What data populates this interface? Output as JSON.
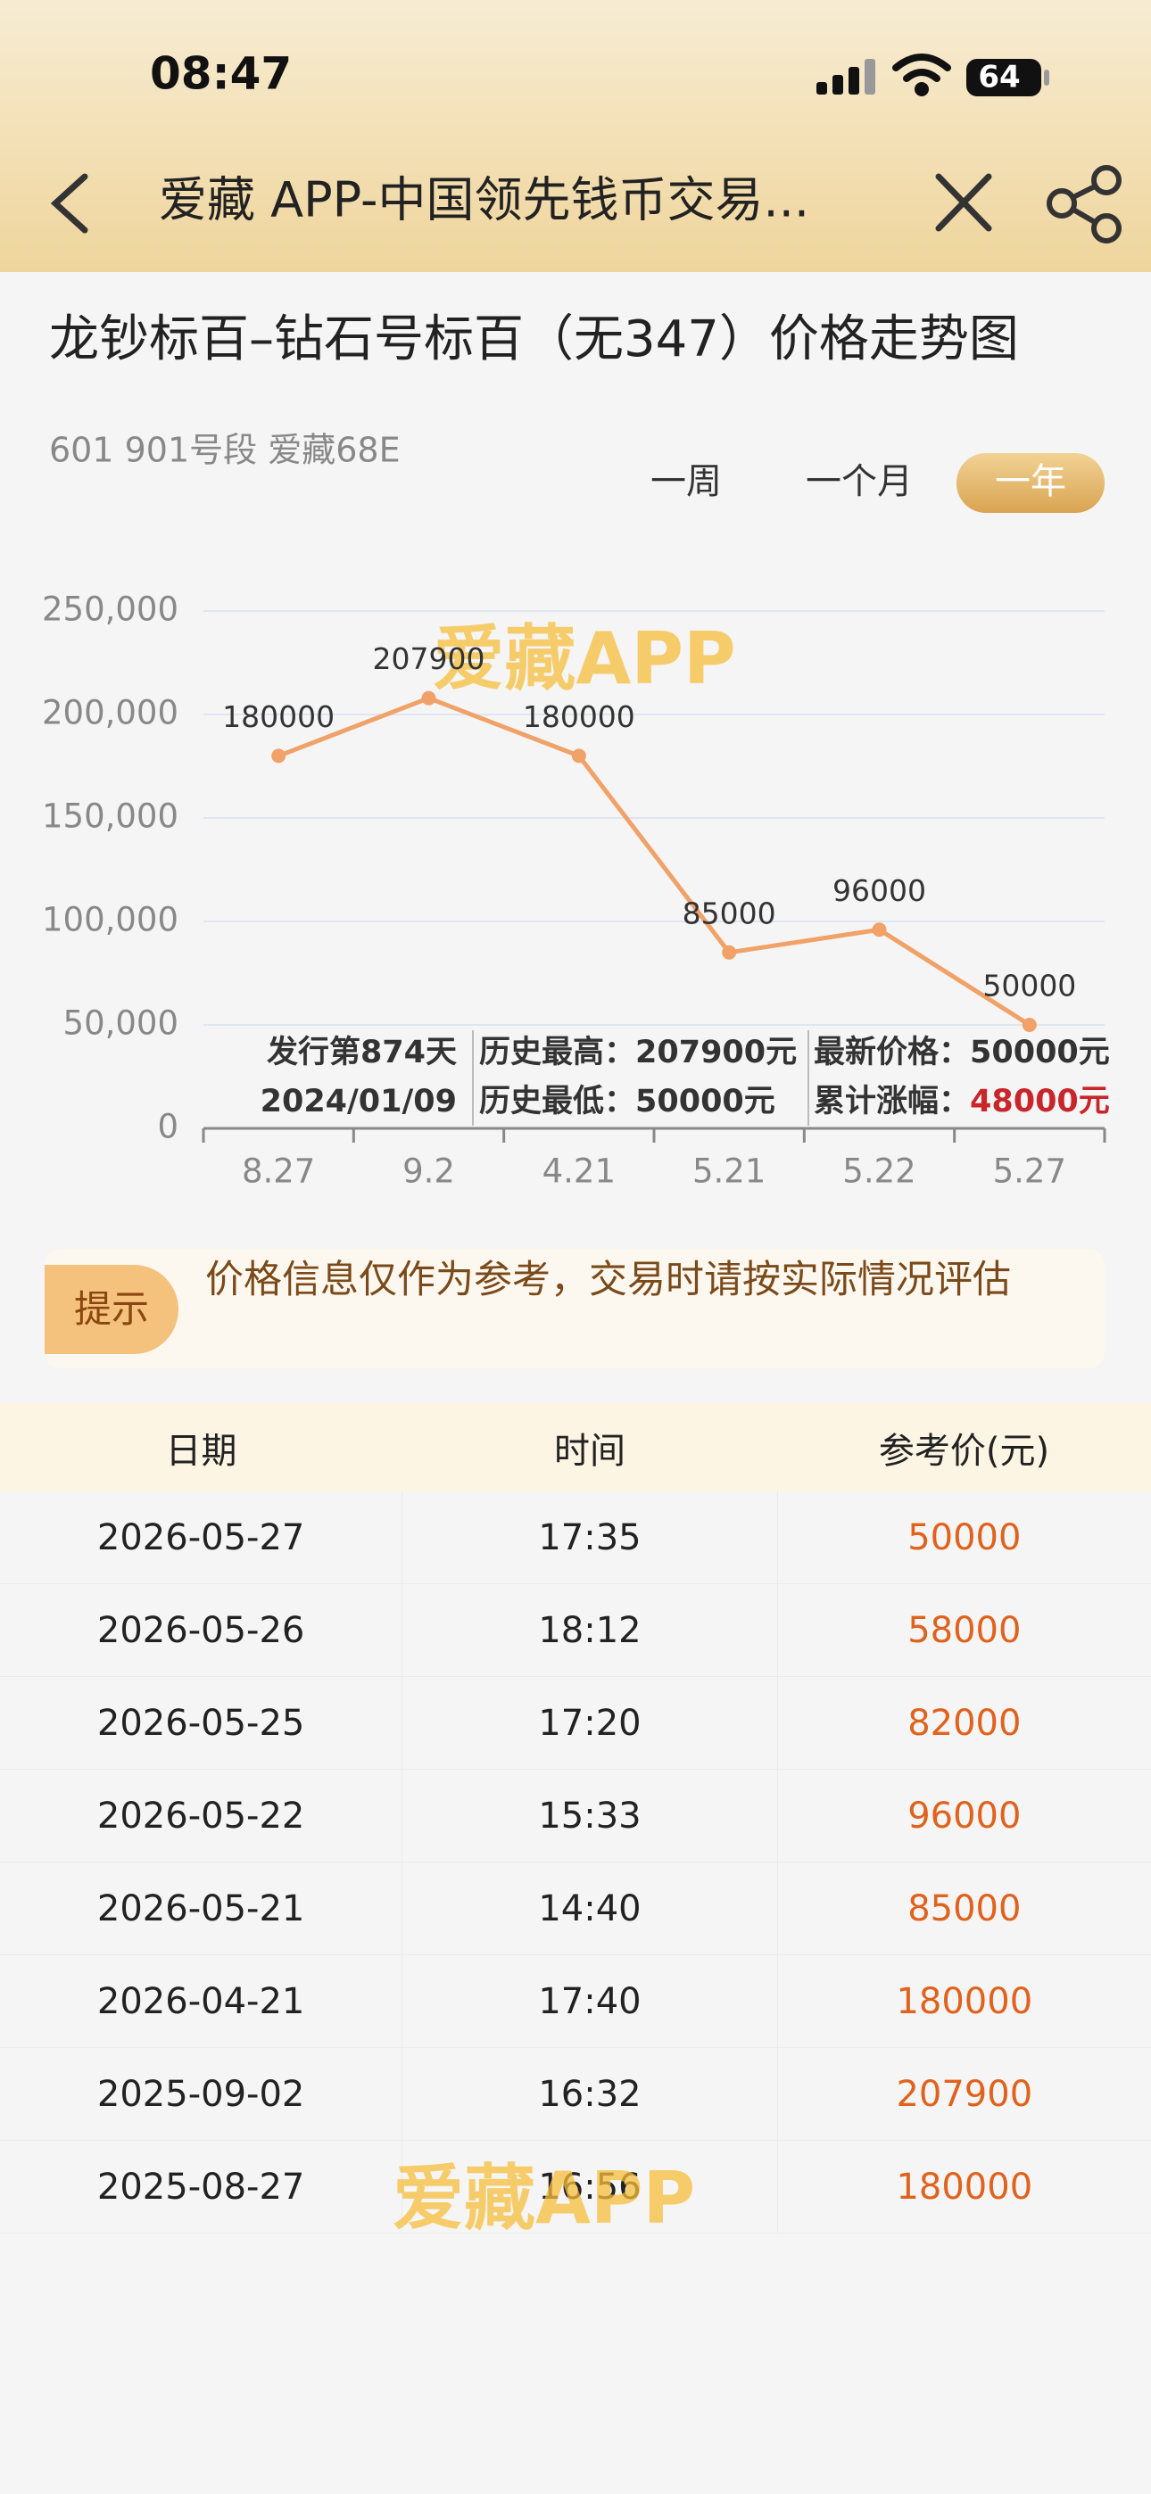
{
  "status": {
    "time": "08:47",
    "battery": "64"
  },
  "nav": {
    "title": "爱藏 APP-中国领先钱币交易..."
  },
  "chart_data": {
    "type": "line",
    "title": "龙钞标百–钻石号标百（无347）价格走势图",
    "subtitle": "601 901号段 爱藏68E",
    "categories": [
      "8.27",
      "9.2",
      "4.21",
      "5.21",
      "5.22",
      "5.27"
    ],
    "values": [
      180000,
      207900,
      180000,
      85000,
      96000,
      50000
    ],
    "color": "#f0a268",
    "ylim": [
      0,
      250000
    ],
    "yticks": [
      0,
      {
        "value": 50000,
        "label": "50,000"
      },
      {
        "value": 100000,
        "label": "100,000"
      },
      {
        "value": 150000,
        "label": "150,000"
      },
      {
        "value": 200000,
        "label": "200,000"
      },
      {
        "value": 250000,
        "label": "250,000"
      }
    ],
    "grid": true
  },
  "range_tabs": [
    "一周",
    "一个月",
    "一年"
  ],
  "active_tab": 2,
  "stats": {
    "issue": [
      "发行第874天",
      "2024/01/09"
    ],
    "history": [
      [
        "历史最高：",
        "207900元"
      ],
      [
        "历史最低：",
        "50000元"
      ]
    ],
    "latest": [
      [
        "最新价格：",
        "50000元"
      ],
      [
        "累计涨幅：",
        "48000元"
      ]
    ]
  },
  "watermark": "爱藏APP",
  "notice": {
    "tag": "提示",
    "text": "价格信息仅作为参考，交易时请按实际情况评估"
  },
  "table": {
    "headers": [
      "日期",
      "时间",
      "参考价(元)"
    ],
    "rows": [
      [
        "2026-05-27",
        "17:35",
        "50000"
      ],
      [
        "2026-05-26",
        "18:12",
        "58000"
      ],
      [
        "2026-05-25",
        "17:20",
        "82000"
      ],
      [
        "2026-05-22",
        "15:33",
        "96000"
      ],
      [
        "2026-05-21",
        "14:40",
        "85000"
      ],
      [
        "2026-04-21",
        "17:40",
        "180000"
      ],
      [
        "2025-09-02",
        "16:32",
        "207900"
      ],
      [
        "2025-08-27",
        "16:56",
        "180000"
      ]
    ]
  }
}
